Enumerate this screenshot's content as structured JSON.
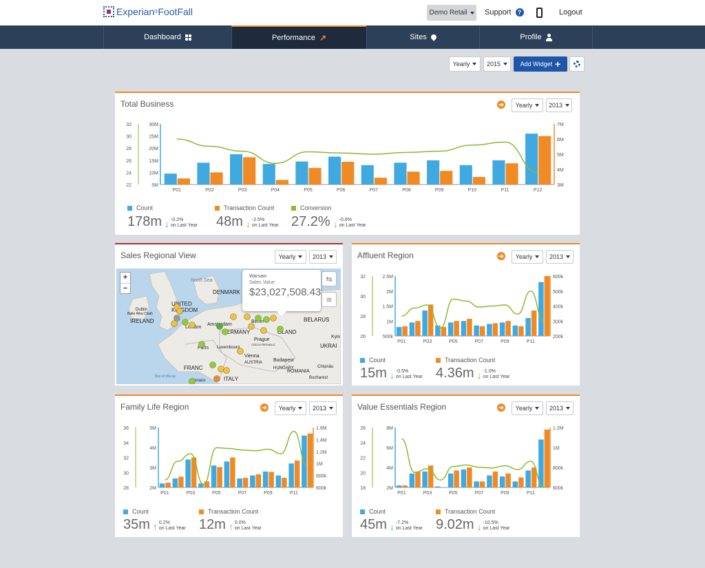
{
  "header": {
    "logo": "Experian",
    "logo_mark": "®",
    "logo_product": "FootFall",
    "account": "Demo Retail",
    "support": "Support",
    "help_glyph": "?",
    "logout": "Logout"
  },
  "nav": {
    "tabs": [
      {
        "label": "Dashboard"
      },
      {
        "label": "Performance",
        "active": true
      },
      {
        "label": "Sites"
      },
      {
        "label": "Profile"
      }
    ],
    "trend_glyph": "↗"
  },
  "toolbar": {
    "period": "Yearly",
    "year": "2015",
    "add_widget": "Add Widget",
    "add_glyph": "+"
  },
  "panel_controls": {
    "period": "Yearly",
    "year": "2013",
    "arrow_glyph": "➔"
  },
  "colors": {
    "count": "#3fa9e0",
    "transaction": "#f08a24",
    "conversion": "#8db92e",
    "nav": "#2d4059",
    "accent": "#1e56a8"
  },
  "total_business": {
    "title": "Total Business",
    "chart_data": {
      "type": "bar",
      "categories": [
        "P01",
        "P02",
        "P03",
        "P04",
        "P05",
        "P06",
        "P07",
        "P08",
        "P09",
        "P10",
        "P11",
        "P12"
      ],
      "series": [
        {
          "name": "Count",
          "axis": "left",
          "values": [
            9.5,
            14,
            17.5,
            13.5,
            14.5,
            16.5,
            13,
            14,
            15,
            13,
            15,
            26
          ]
        },
        {
          "name": "Transaction Count",
          "axis": "right",
          "values": [
            3.4,
            3.8,
            4.8,
            3.3,
            4.1,
            4.5,
            3.45,
            3.85,
            3.9,
            3.5,
            4.4,
            6.2
          ]
        },
        {
          "name": "Conversion",
          "axis": "left2",
          "type": "line",
          "values": [
            29.5,
            28.3,
            27.5,
            25.5,
            27.4,
            27.2,
            27,
            27.3,
            27.5,
            28.5,
            29,
            24
          ]
        }
      ],
      "y_left_ticks": [
        "5M",
        "10M",
        "15M",
        "20M",
        "25M",
        "30M"
      ],
      "y_left_range": [
        5,
        30
      ],
      "y_left2_ticks": [
        "22",
        "24",
        "26",
        "28",
        "30",
        "32"
      ],
      "y_left2_range": [
        22,
        32
      ],
      "y_right_ticks": [
        "3M",
        "4M",
        "5M",
        "6M",
        "7M"
      ],
      "y_right_range": [
        3,
        7
      ]
    },
    "kpis": [
      {
        "label": "Count",
        "value": "178m",
        "dir": "down",
        "change": "-0.2%",
        "sub": "on Last Year"
      },
      {
        "label": "Transaction Count",
        "value": "48m",
        "dir": "down",
        "change": "-2.5%",
        "sub": "on Last Year"
      },
      {
        "label": "Conversion",
        "value": "27.2%",
        "dir": "down",
        "change": "-0.6%",
        "sub": "on Last Year"
      }
    ]
  },
  "sales_regional": {
    "title": "Sales Regional View",
    "zoom_in": "+",
    "zoom_out": "−",
    "popup": {
      "city": "Warsaw",
      "label": "Sales Value",
      "value": "$23,027,508.43"
    },
    "map_buttons": {
      "swap": "⇆",
      "layers": "≋"
    },
    "labels": [
      "North Sea",
      "DENMARK",
      "UNITED KINGDOM",
      "IRELAND",
      "Dublin",
      "Baile Átha Cliath",
      "London",
      "Amsterdam",
      "ERMANY",
      "Berlin",
      "OLAND",
      "BELARUS",
      "Prague",
      "CZECH REPUBLIC",
      "Kyiv",
      "UKRAI",
      "Paris",
      "Luxembourg",
      "Vienna",
      "Budapest",
      "FRANC",
      "AUSTRIA",
      "HUNGARY",
      "ROMANIA",
      "Chișinău",
      "Bucharest",
      "ITALY",
      "Monaco",
      "Bay of Biscay"
    ]
  },
  "affluent": {
    "title": "Affluent Region",
    "chart_data": {
      "type": "bar",
      "categories": [
        "P01",
        "P02",
        "P03",
        "P04",
        "P05",
        "P06",
        "P07",
        "P08",
        "P09",
        "P10",
        "P11",
        "P12"
      ],
      "x_tick_labels": [
        "P01",
        "P03",
        "P05",
        "P07",
        "P09",
        "P11"
      ],
      "series": [
        {
          "name": "Count",
          "values": [
            0.8,
            0.95,
            1.35,
            0.85,
            0.95,
            1.0,
            0.85,
            0.9,
            0.95,
            0.85,
            1.1,
            2.3
          ]
        },
        {
          "name": "Transaction Count",
          "values": [
            265,
            300,
            410,
            260,
            300,
            315,
            265,
            285,
            300,
            265,
            370,
            600
          ]
        },
        {
          "name": "Conversion",
          "type": "line",
          "values": [
            28,
            28.8,
            29.1,
            26.8,
            29.7,
            29.5,
            28.9,
            29.0,
            29.1,
            28.2,
            30.5,
            27.5
          ]
        }
      ],
      "y_left_ticks": [
        "500k",
        "1M",
        "1.5M",
        "2M",
        "2.5M"
      ],
      "y_left_range": [
        0.5,
        2.5
      ],
      "y_left2_ticks": [
        "26",
        "28",
        "30",
        "32"
      ],
      "y_left2_range": [
        26,
        32
      ],
      "y_right_ticks": [
        "200k",
        "300k",
        "400k",
        "500k",
        "600k"
      ],
      "y_right_range": [
        200,
        600
      ]
    },
    "kpis": [
      {
        "label": "Count",
        "value": "15m",
        "dir": "down",
        "change": "-0.5%",
        "sub": "on Last Year"
      },
      {
        "label": "Transaction Count",
        "value": "4.36m",
        "dir": "down",
        "change": "-1.0%",
        "sub": "on Last Year"
      }
    ]
  },
  "family_life": {
    "title": "Family Life Region",
    "chart_data": {
      "type": "bar",
      "categories": [
        "P01",
        "P02",
        "P03",
        "P04",
        "P05",
        "P06",
        "P07",
        "P08",
        "P09",
        "P10",
        "P11",
        "P12"
      ],
      "x_tick_labels": [
        "P01",
        "P03",
        "P05",
        "P07",
        "P09",
        "P11"
      ],
      "series": [
        {
          "name": "Count",
          "values": [
            2.2,
            2.45,
            3.4,
            2.2,
            3.1,
            3.3,
            2.45,
            2.6,
            2.8,
            2.6,
            3.2,
            4.6
          ]
        },
        {
          "name": "Transaction Count",
          "values": [
            680,
            780,
            1100,
            700,
            940,
            1100,
            760,
            820,
            860,
            760,
            1050,
            1500
          ]
        },
        {
          "name": "Conversion",
          "type": "line",
          "values": [
            29,
            31.5,
            32.5,
            28.4,
            33.3,
            33.2,
            33,
            32.9,
            33.1,
            32.5,
            35.5,
            31
          ]
        }
      ],
      "y_left_ticks": [
        "2M",
        "3M",
        "4M",
        "5M"
      ],
      "y_left_range": [
        2,
        5
      ],
      "y_left2_ticks": [
        "28",
        "30",
        "32",
        "34",
        "36"
      ],
      "y_left2_range": [
        28,
        36
      ],
      "y_right_ticks": [
        "600k",
        "800k",
        "1M",
        "1.2M",
        "1.4M",
        "1.6M"
      ],
      "y_right_range": [
        600,
        1600
      ]
    },
    "kpis": [
      {
        "label": "Count",
        "value": "35m",
        "dir": "up",
        "change": "0.2%",
        "sub": "on Last Year"
      },
      {
        "label": "Transaction Count",
        "value": "12m",
        "dir": "up",
        "change": "0.0%",
        "sub": "on Last Year"
      }
    ]
  },
  "value_essentials": {
    "title": "Value Essentials Region",
    "chart_data": {
      "type": "bar",
      "categories": [
        "P01",
        "P02",
        "P03",
        "P04",
        "P05",
        "P06",
        "P07",
        "P08",
        "P09",
        "P10",
        "P11",
        "P12"
      ],
      "x_tick_labels": [
        "P01",
        "P03",
        "P05",
        "P07",
        "P09",
        "P11"
      ],
      "series": [
        {
          "name": "Count",
          "values": [
            2.2,
            3.4,
            3.6,
            2.1,
            3.4,
            3.8,
            2.6,
            3.2,
            3.1,
            2.6,
            3.7,
            6.8
          ]
        },
        {
          "name": "Transaction Count",
          "values": [
            620,
            760,
            820,
            600,
            770,
            800,
            660,
            760,
            740,
            700,
            800,
            1180
          ]
        },
        {
          "name": "Conversion",
          "type": "line",
          "values": [
            24.5,
            20,
            20.5,
            19,
            20.8,
            21,
            20.7,
            20.6,
            20.9,
            20.4,
            21.5,
            18
          ]
        }
      ],
      "y_left_ticks": [
        "2M",
        "4M",
        "6M",
        "8M"
      ],
      "y_left_range": [
        2,
        8
      ],
      "y_left2_ticks": [
        "18",
        "20",
        "22",
        "24",
        "26"
      ],
      "y_left2_range": [
        18,
        26
      ],
      "y_right_ticks": [
        "600k",
        "800k",
        "1M",
        "1.2M"
      ],
      "y_right_range": [
        600,
        1200
      ]
    },
    "kpis": [
      {
        "label": "Count",
        "value": "45m",
        "dir": "down",
        "change": "-7.2%",
        "sub": "on Last Year"
      },
      {
        "label": "Transaction Count",
        "value": "9.02m",
        "dir": "down",
        "change": "-10.5%",
        "sub": "on Last Year"
      }
    ]
  }
}
